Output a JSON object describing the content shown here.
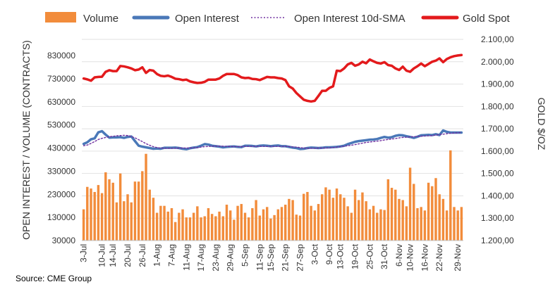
{
  "chart_data": {
    "type": "bar+line",
    "legend": {
      "placement": "top",
      "items": [
        {
          "label": "Volume",
          "style": "bar",
          "color": "#f28c3b"
        },
        {
          "label": "Open Interest",
          "style": "line",
          "color": "#4a78b8"
        },
        {
          "label": "Open Interest 10d-SMA",
          "style": "dotted",
          "color": "#7030a0"
        },
        {
          "label": "Gold Spot",
          "style": "line",
          "color": "#e31a1c"
        }
      ]
    },
    "ylabel_left": "OPEN INTEREST / VOLUME (CONTRACTS)",
    "ylabel_right": "GOLD $/OZ",
    "ylim_left": [
      30000,
      900000
    ],
    "ylim_right": [
      1200,
      2100
    ],
    "yticks_left": [
      "830000",
      "730000",
      "630000",
      "530000",
      "430000",
      "330000",
      "230000",
      "130000",
      "30000"
    ],
    "yticks_right": [
      "2.100,00",
      "2.000,00",
      "1.900,00",
      "1.800,00",
      "1.700,00",
      "1.600,00",
      "1.500,00",
      "1.400,00",
      "1.300,00",
      "1.200,00"
    ],
    "xticks": [
      "3-Jul",
      "10-Jul",
      "14-Jul",
      "20-Jul",
      "26-Jul",
      "1-Aug",
      "7-Aug",
      "11-Aug",
      "17-Aug",
      "23-Aug",
      "29-Aug",
      "5-Sep",
      "11-Sep",
      "15-Sep",
      "21-Sep",
      "27-Sep",
      "3-Oct",
      "9-Oct",
      "13-Oct",
      "19-Oct",
      "25-Oct",
      "31-Oct",
      "6-Nov",
      "10-Nov",
      "16-Nov",
      "22-Nov",
      "29-Nov"
    ],
    "xtick_positions": [
      0,
      5,
      8,
      12,
      16,
      20,
      24,
      28,
      32,
      36,
      40,
      44,
      48,
      51,
      55,
      59,
      63,
      67,
      70,
      74,
      78,
      82,
      86,
      89,
      93,
      97,
      102
    ],
    "n_days": 104,
    "series": [
      {
        "name": "Volume",
        "axis": "left",
        "values": [
          165000,
          262000,
          255000,
          240000,
          270000,
          235000,
          325000,
          295000,
          280000,
          195000,
          320000,
          200000,
          230000,
          195000,
          285000,
          285000,
          330000,
          405000,
          250000,
          215000,
          150000,
          180000,
          180000,
          155000,
          170000,
          110000,
          150000,
          165000,
          130000,
          130000,
          150000,
          178000,
          130000,
          135000,
          170000,
          145000,
          135000,
          155000,
          135000,
          185000,
          160000,
          120000,
          180000,
          188000,
          150000,
          130000,
          170000,
          205000,
          138000,
          165000,
          175000,
          125000,
          140000,
          165000,
          175000,
          185000,
          210000,
          205000,
          142000,
          138000,
          232000,
          240000,
          180000,
          160000,
          188000,
          230000,
          260000,
          250000,
          215000,
          255000,
          230000,
          215000,
          178000,
          150000,
          250000,
          205000,
          238000,
          200000,
          165000,
          180000,
          150000,
          165000,
          162000,
          295000,
          258000,
          250000,
          210000,
          205000,
          178000,
          345000,
          275000,
          170000,
          175000,
          160000,
          280000,
          265000,
          300000,
          230000,
          210000,
          160000,
          420000,
          175000,
          160000,
          175000
        ]
      },
      {
        "name": "Open Interest",
        "axis": "left",
        "values": [
          448000,
          455000,
          468000,
          472000,
          498000,
          503000,
          488000,
          475000,
          476000,
          476000,
          477000,
          474000,
          478000,
          480000,
          460000,
          440000,
          436000,
          433000,
          430000,
          427000,
          428000,
          427000,
          431000,
          431000,
          431000,
          432000,
          430000,
          427000,
          425000,
          429000,
          432000,
          434000,
          440000,
          447000,
          445000,
          440000,
          438000,
          436000,
          433000,
          435000,
          436000,
          437000,
          435000,
          434000,
          440000,
          440000,
          439000,
          437000,
          440000,
          441000,
          440000,
          438000,
          440000,
          441000,
          438000,
          438000,
          435000,
          432000,
          430000,
          426000,
          427000,
          430000,
          432000,
          431000,
          430000,
          431000,
          433000,
          433000,
          434000,
          435000,
          437000,
          440000,
          447000,
          452000,
          457000,
          460000,
          462000,
          464000,
          466000,
          467000,
          469000,
          474000,
          478000,
          475000,
          477000,
          483000,
          486000,
          485000,
          481000,
          478000,
          474000,
          479000,
          485000,
          486000,
          487000,
          486000,
          490000,
          486000,
          506000,
          500000,
          497000,
          497000,
          497000,
          497000
        ]
      },
      {
        "name": "Open Interest 10d-SMA",
        "axis": "left",
        "values": [
          440000,
          443000,
          450000,
          458000,
          467000,
          472000,
          476000,
          479000,
          481000,
          483000,
          484000,
          485000,
          484000,
          480000,
          474000,
          466000,
          458000,
          449000,
          442000,
          436000,
          432000,
          430000,
          429000,
          429000,
          429000,
          429000,
          430000,
          430000,
          430000,
          430000,
          431000,
          432000,
          434000,
          436000,
          437000,
          438000,
          438000,
          438000,
          438000,
          437000,
          437000,
          436000,
          436000,
          436000,
          437000,
          437000,
          437000,
          437000,
          437000,
          437000,
          437000,
          437000,
          437000,
          437000,
          437000,
          437000,
          436000,
          435000,
          434000,
          432000,
          430000,
          429000,
          429000,
          429000,
          430000,
          430000,
          430000,
          431000,
          432000,
          434000,
          436000,
          438000,
          440000,
          442000,
          445000,
          448000,
          451000,
          454000,
          456000,
          458000,
          460000,
          462000,
          465000,
          467000,
          469000,
          471000,
          474000,
          476000,
          477000,
          478000,
          479000,
          480000,
          481000,
          482000,
          483000,
          484000,
          486000,
          488000,
          490000,
          492000,
          494000,
          495000,
          496000,
          497000
        ]
      },
      {
        "name": "Gold Spot",
        "axis": "right",
        "values": [
          1925,
          1921,
          1915,
          1930,
          1932,
          1933,
          1955,
          1962,
          1958,
          1958,
          1981,
          1979,
          1975,
          1970,
          1962,
          1965,
          1975,
          1950,
          1963,
          1960,
          1945,
          1937,
          1935,
          1938,
          1932,
          1924,
          1922,
          1918,
          1920,
          1912,
          1908,
          1905,
          1906,
          1910,
          1920,
          1920,
          1920,
          1925,
          1937,
          1945,
          1945,
          1945,
          1940,
          1930,
          1927,
          1928,
          1923,
          1922,
          1918,
          1925,
          1932,
          1930,
          1930,
          1927,
          1925,
          1918,
          1890,
          1880,
          1860,
          1845,
          1830,
          1825,
          1822,
          1825,
          1847,
          1870,
          1870,
          1883,
          1890,
          1960,
          1958,
          1970,
          1988,
          1995,
          1982,
          1988,
          2000,
          1993,
          2010,
          2002,
          1995,
          1992,
          1998,
          1985,
          1982,
          1970,
          1963,
          1978,
          1960,
          1955,
          1970,
          1980,
          1992,
          1980,
          1990,
          2000,
          2005,
          2015,
          1998,
          2012,
          2020,
          2025,
          2028,
          2030
        ]
      }
    ]
  },
  "source": "Source: CME Group"
}
